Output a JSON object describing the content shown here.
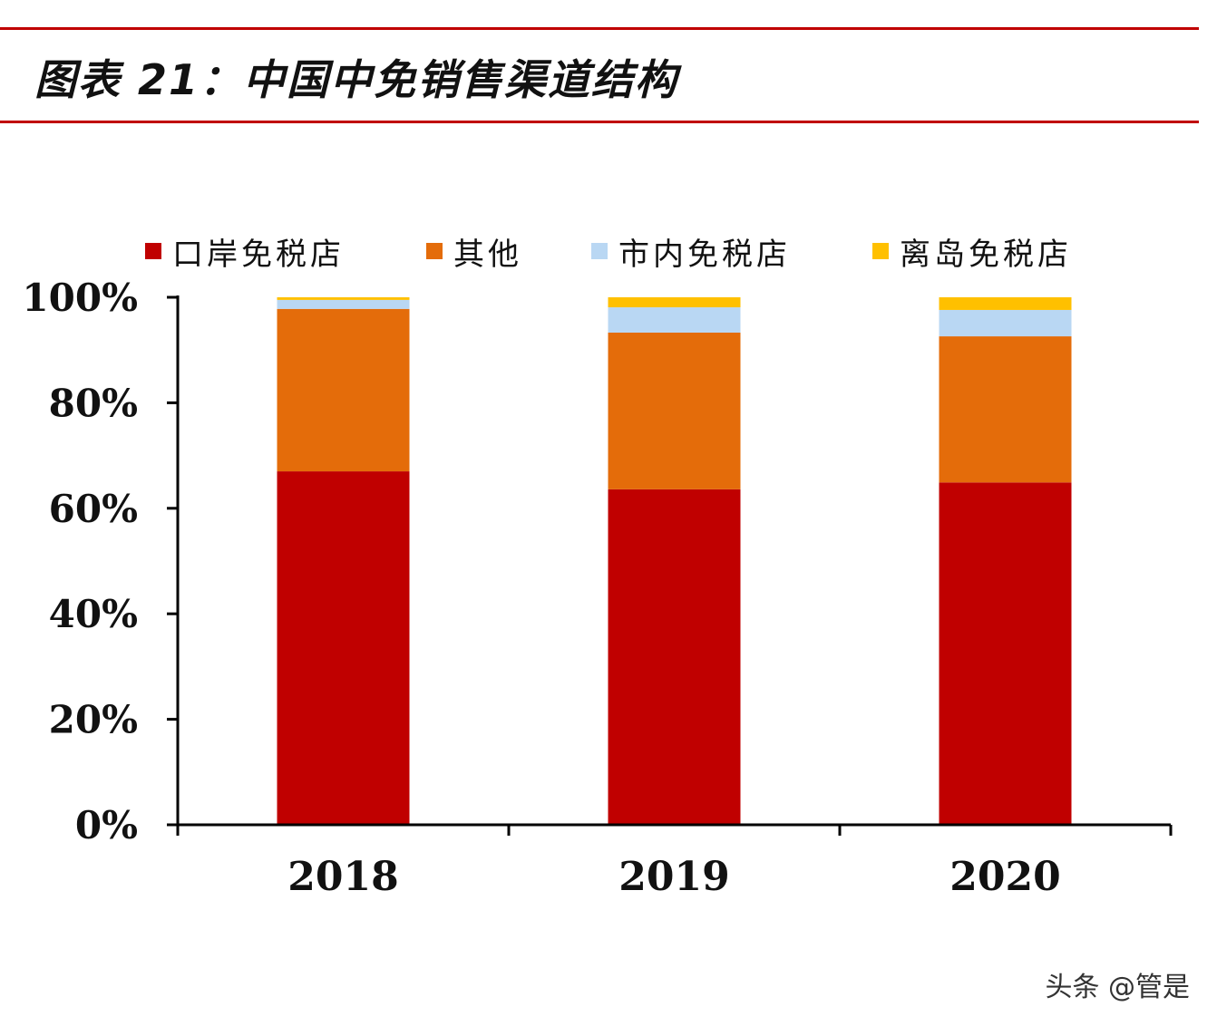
{
  "title": "图表 21：中国中免销售渠道结构",
  "watermark": "头条 @管是",
  "chart_data": {
    "type": "bar",
    "stacked": true,
    "title": "",
    "xlabel": "",
    "ylabel": "",
    "categories": [
      "2018",
      "2019",
      "2020"
    ],
    "ylim": [
      0,
      100
    ],
    "yticks": [
      "0%",
      "20%",
      "40%",
      "60%",
      "80%",
      "100%"
    ],
    "grid": false,
    "legend_position": "top",
    "series": [
      {
        "name": "口岸免税店",
        "color": "#c00000",
        "values": [
          67.0,
          63.6,
          64.9
        ]
      },
      {
        "name": "其他",
        "color": "#e46c0a",
        "values": [
          30.8,
          29.7,
          27.7
        ]
      },
      {
        "name": "市内免税店",
        "color": "#b9d7f3",
        "values": [
          1.7,
          4.8,
          5.0
        ]
      },
      {
        "name": "离岛免税店",
        "color": "#ffc000",
        "values": [
          0.5,
          1.9,
          2.4
        ]
      }
    ]
  }
}
